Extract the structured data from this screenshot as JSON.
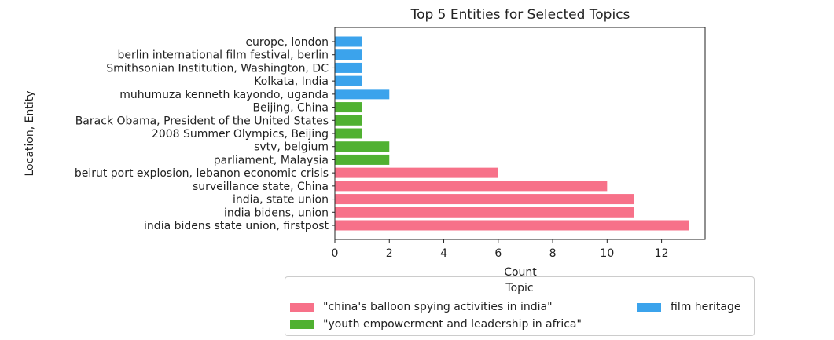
{
  "chart_data": {
    "type": "bar",
    "orientation": "horizontal",
    "title": "Top 5 Entities for Selected Topics",
    "xlabel": "Count",
    "ylabel": "Location, Entity",
    "xlim": [
      0,
      13.6
    ],
    "xticks": [
      0,
      2,
      4,
      6,
      8,
      10,
      12
    ],
    "categories": [
      "europe, london",
      "berlin international film festival, berlin",
      "Smithsonian Institution, Washington, DC",
      "Kolkata, India",
      "muhumuza kenneth kayondo, uganda",
      "Beijing, China",
      "Barack Obama, President of the United States",
      "2008 Summer Olympics, Beijing",
      "svtv, belgium",
      "parliament, Malaysia",
      "beirut port explosion, lebanon economic crisis",
      "surveillance state, China",
      "india, state union",
      "india bidens, union",
      "india bidens state union, firstpost"
    ],
    "values": [
      1,
      1,
      1,
      1,
      2,
      1,
      1,
      1,
      2,
      2,
      6,
      10,
      11,
      11,
      13
    ],
    "groups": [
      2,
      2,
      2,
      2,
      2,
      1,
      1,
      1,
      1,
      1,
      0,
      0,
      0,
      0,
      0
    ],
    "series": [
      {
        "name": "\"china's balloon spying activities in india\"",
        "color": "#f77189"
      },
      {
        "name": "\"youth empowerment and leadership in africa\"",
        "color": "#50b131"
      },
      {
        "name": "film heritage",
        "color": "#3ba3ec"
      }
    ],
    "legend_title": "Topic",
    "legend_position": "bottom-center",
    "grid": false
  }
}
